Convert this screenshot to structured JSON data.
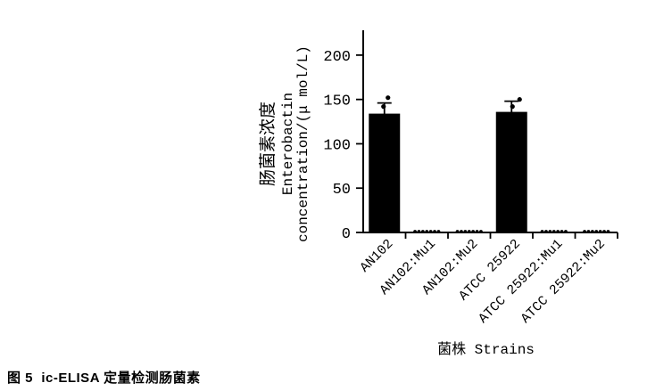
{
  "figure": {
    "caption": "图 5  ic-ELISA 定量检测肠菌素"
  },
  "chart_data": {
    "type": "bar",
    "title": "",
    "categories": [
      "AN102",
      "AN102:Mu1",
      "AN102:Mu2",
      "ATCC 25922",
      "ATCC 25922:Mu1",
      "ATCC 25922:Mu2"
    ],
    "values": [
      134,
      0,
      0,
      136,
      0,
      0
    ],
    "error_sd_upper": [
      12,
      0,
      0,
      12,
      0,
      0
    ],
    "scatter_points": [
      [
        {
          "dx": 4,
          "v": 152
        },
        {
          "dx": -1,
          "v": 142
        }
      ],
      [],
      [],
      [
        {
          "dx": 9,
          "v": 150
        },
        {
          "dx": 1,
          "v": 142
        }
      ],
      [],
      []
    ],
    "baseline_dot_counts": [
      0,
      7,
      7,
      0,
      7,
      7
    ],
    "ylabel_lines": [
      "肠菌素浓度",
      "Enterobactin",
      "concentration/(μ mol/L)"
    ],
    "xlabel": "菌株 Strains",
    "yticks": [
      0,
      50,
      100,
      150,
      200
    ],
    "ylim": [
      0,
      228
    ],
    "grid": false,
    "legend": "none",
    "bar_color": "#000000",
    "axis_color": "#000000"
  }
}
